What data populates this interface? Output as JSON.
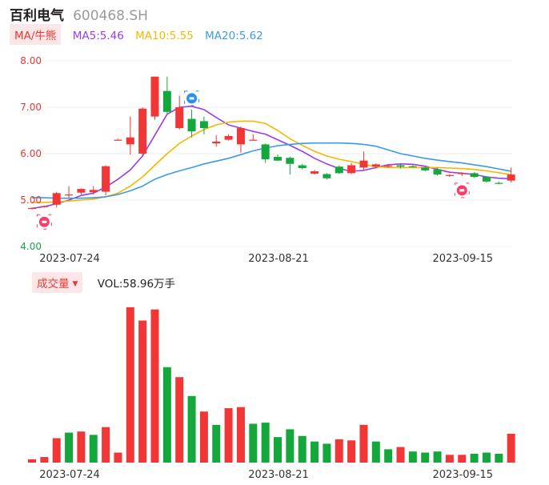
{
  "header": {
    "name": "百利电气",
    "code": "600468.SH"
  },
  "ma_legend": {
    "button": "MA/牛熊",
    "items": [
      {
        "label": "MA5:5.46",
        "color": "#9b3ce8"
      },
      {
        "label": "MA10:5.55",
        "color": "#f5b800"
      },
      {
        "label": "MA20:5.62",
        "color": "#3a9be8"
      }
    ]
  },
  "volume_legend": {
    "button": "成交量",
    "text": "VOL:58.96万手"
  },
  "colors": {
    "up": "#f23636",
    "down": "#14a83c"
  },
  "chart_data": [
    {
      "type": "candlestick",
      "y_axis": {
        "min": 4.0,
        "max": 8.0,
        "ticks": [
          "8.00",
          "7.00",
          "6.00",
          "5.00",
          "4.00"
        ]
      },
      "x_labels": [
        {
          "text": "2023-07-24",
          "index": 3
        },
        {
          "text": "2023-08-21",
          "index": 20
        },
        {
          "text": "2023-09-15",
          "index": 35
        }
      ],
      "candles": [
        {
          "o": 4.82,
          "h": 4.84,
          "l": 4.8,
          "c": 4.83
        },
        {
          "o": 4.86,
          "h": 4.88,
          "l": 4.84,
          "c": 4.87
        },
        {
          "o": 4.9,
          "h": 5.18,
          "l": 4.84,
          "c": 5.15
        },
        {
          "o": 5.1,
          "h": 5.3,
          "l": 5.05,
          "c": 5.12
        },
        {
          "o": 5.16,
          "h": 5.25,
          "l": 5.12,
          "c": 5.24
        },
        {
          "o": 5.17,
          "h": 5.3,
          "l": 5.12,
          "c": 5.22
        },
        {
          "o": 5.18,
          "h": 5.75,
          "l": 5.1,
          "c": 5.73
        },
        {
          "o": 6.3,
          "h": 6.32,
          "l": 6.28,
          "c": 6.3
        },
        {
          "o": 6.2,
          "h": 6.8,
          "l": 5.98,
          "c": 6.35
        },
        {
          "o": 6.0,
          "h": 7.0,
          "l": 5.93,
          "c": 6.97
        },
        {
          "o": 6.8,
          "h": 7.66,
          "l": 6.73,
          "c": 7.66
        },
        {
          "o": 7.35,
          "h": 7.66,
          "l": 6.85,
          "c": 6.9
        },
        {
          "o": 6.55,
          "h": 7.25,
          "l": 6.52,
          "c": 7.0
        },
        {
          "o": 6.75,
          "h": 6.95,
          "l": 6.35,
          "c": 6.48
        },
        {
          "o": 6.7,
          "h": 6.8,
          "l": 6.42,
          "c": 6.55
        },
        {
          "o": 6.22,
          "h": 6.4,
          "l": 6.15,
          "c": 6.26
        },
        {
          "o": 6.3,
          "h": 6.42,
          "l": 6.28,
          "c": 6.38
        },
        {
          "o": 6.2,
          "h": 6.58,
          "l": 6.02,
          "c": 6.55
        },
        {
          "o": 6.3,
          "h": 6.42,
          "l": 6.28,
          "c": 6.3
        },
        {
          "o": 6.2,
          "h": 6.22,
          "l": 5.8,
          "c": 5.88
        },
        {
          "o": 5.93,
          "h": 5.98,
          "l": 5.84,
          "c": 5.85
        },
        {
          "o": 5.91,
          "h": 5.94,
          "l": 5.55,
          "c": 5.78
        },
        {
          "o": 5.75,
          "h": 5.78,
          "l": 5.66,
          "c": 5.69
        },
        {
          "o": 5.57,
          "h": 5.65,
          "l": 5.55,
          "c": 5.62
        },
        {
          "o": 5.56,
          "h": 5.58,
          "l": 5.44,
          "c": 5.47
        },
        {
          "o": 5.72,
          "h": 5.75,
          "l": 5.56,
          "c": 5.58
        },
        {
          "o": 5.58,
          "h": 5.8,
          "l": 5.56,
          "c": 5.75
        },
        {
          "o": 5.7,
          "h": 6.05,
          "l": 5.65,
          "c": 5.85
        },
        {
          "o": 5.72,
          "h": 5.79,
          "l": 5.68,
          "c": 5.77
        },
        {
          "o": 5.73,
          "h": 5.78,
          "l": 5.7,
          "c": 5.74
        },
        {
          "o": 5.75,
          "h": 5.78,
          "l": 5.68,
          "c": 5.72
        },
        {
          "o": 5.73,
          "h": 5.78,
          "l": 5.7,
          "c": 5.71
        },
        {
          "o": 5.7,
          "h": 5.72,
          "l": 5.62,
          "c": 5.64
        },
        {
          "o": 5.66,
          "h": 5.7,
          "l": 5.53,
          "c": 5.55
        },
        {
          "o": 5.52,
          "h": 5.56,
          "l": 5.5,
          "c": 5.54
        },
        {
          "o": 5.56,
          "h": 5.6,
          "l": 5.52,
          "c": 5.58
        },
        {
          "o": 5.58,
          "h": 5.6,
          "l": 5.48,
          "c": 5.5
        },
        {
          "o": 5.5,
          "h": 5.52,
          "l": 5.38,
          "c": 5.4
        },
        {
          "o": 5.37,
          "h": 5.4,
          "l": 5.34,
          "c": 5.36
        },
        {
          "o": 5.42,
          "h": 5.7,
          "l": 5.38,
          "c": 5.55
        }
      ],
      "ma_series": [
        {
          "name": "MA5",
          "values": [
            4.82,
            4.86,
            4.92,
            5.0,
            5.1,
            5.15,
            5.28,
            5.45,
            5.65,
            5.95,
            6.4,
            6.85,
            7.0,
            7.02,
            6.95,
            6.78,
            6.62,
            6.55,
            6.48,
            6.42,
            6.3,
            6.18,
            6.05,
            5.9,
            5.78,
            5.68,
            5.62,
            5.64,
            5.7,
            5.76,
            5.78,
            5.77,
            5.73,
            5.66,
            5.6,
            5.58,
            5.55,
            5.5,
            5.47,
            5.46
          ]
        },
        {
          "name": "MA10",
          "values": [
            4.95,
            4.95,
            4.96,
            4.98,
            5.0,
            5.02,
            5.07,
            5.15,
            5.3,
            5.5,
            5.75,
            6.0,
            6.22,
            6.38,
            6.52,
            6.62,
            6.68,
            6.7,
            6.7,
            6.65,
            6.5,
            6.32,
            6.18,
            6.05,
            5.95,
            5.88,
            5.83,
            5.77,
            5.72,
            5.7,
            5.7,
            5.7,
            5.7,
            5.7,
            5.69,
            5.68,
            5.66,
            5.63,
            5.59,
            5.55
          ]
        },
        {
          "name": "MA20",
          "values": [
            5.05,
            5.05,
            5.04,
            5.04,
            5.04,
            5.05,
            5.07,
            5.12,
            5.2,
            5.3,
            5.45,
            5.55,
            5.63,
            5.7,
            5.78,
            5.84,
            5.9,
            5.98,
            6.06,
            6.12,
            6.17,
            6.2,
            6.22,
            6.23,
            6.23,
            6.23,
            6.22,
            6.2,
            6.16,
            6.08,
            6.0,
            5.95,
            5.9,
            5.86,
            5.83,
            5.8,
            5.76,
            5.72,
            5.67,
            5.62
          ]
        }
      ],
      "markers": [
        {
          "index": 1,
          "kind": "bull"
        },
        {
          "index": 13,
          "kind": "bear"
        },
        {
          "index": 35,
          "kind": "bull"
        }
      ]
    },
    {
      "type": "bar",
      "series_name": "成交量",
      "values": [
        3,
        5,
        22,
        27,
        28,
        25,
        32,
        9,
        140,
        128,
        138,
        86,
        77,
        60,
        46,
        34,
        49,
        50,
        35,
        36,
        23,
        30,
        24,
        19,
        17,
        21,
        20,
        34,
        19,
        12,
        14,
        10,
        9,
        10,
        7,
        7,
        8,
        9,
        8,
        26
      ],
      "directions": [
        "up",
        "up",
        "up",
        "down",
        "up",
        "down",
        "up",
        "up",
        "up",
        "up",
        "up",
        "down",
        "up",
        "down",
        "up",
        "down",
        "up",
        "up",
        "down",
        "down",
        "down",
        "down",
        "down",
        "down",
        "down",
        "up",
        "up",
        "up",
        "down",
        "down",
        "up",
        "down",
        "down",
        "down",
        "up",
        "up",
        "down",
        "down",
        "down",
        "up"
      ],
      "x_labels": [
        "2023-07-24",
        "2023-08-21",
        "2023-09-15"
      ]
    }
  ]
}
